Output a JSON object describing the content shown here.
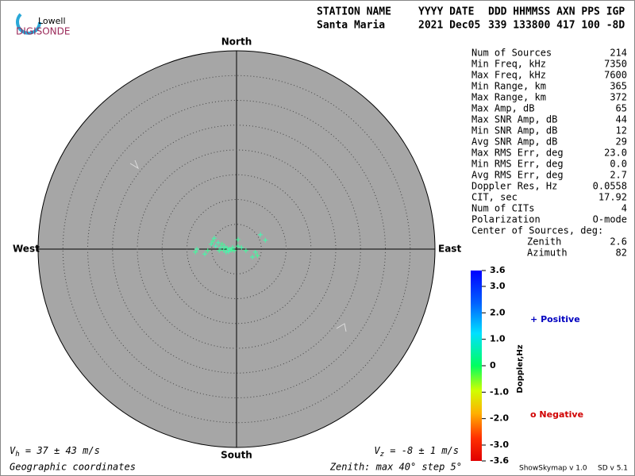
{
  "logo": {
    "top": "Lowell",
    "bottom": "DIGISONDE"
  },
  "header": {
    "labels": [
      "STATION NAME",
      "YYYY DATE",
      "DDD HHMMSS AXN PPS IGP"
    ],
    "values": [
      "Santa Maria",
      "2021 Dec05",
      "339 133800 417 100 -8D"
    ]
  },
  "stats": [
    {
      "label": "Num of Sources",
      "value": "214"
    },
    {
      "label": "Min Freq, kHz",
      "value": "7350"
    },
    {
      "label": "Max Freq, kHz",
      "value": "7600"
    },
    {
      "label": "Min Range, km",
      "value": "365"
    },
    {
      "label": "Max Range, km",
      "value": "372"
    },
    {
      "label": "Max Amp, dB",
      "value": "65"
    },
    {
      "label": "Max SNR Amp, dB",
      "value": "44"
    },
    {
      "label": "Min SNR Amp, dB",
      "value": "12"
    },
    {
      "label": "Avg SNR Amp, dB",
      "value": "29"
    },
    {
      "label": "Max RMS Err, deg",
      "value": "23.0"
    },
    {
      "label": "Min RMS Err, deg",
      "value": "0.0"
    },
    {
      "label": "Avg RMS Err, deg",
      "value": "2.7"
    },
    {
      "label": "Doppler Res, Hz",
      "value": "0.0558"
    },
    {
      "label": "CIT, sec",
      "value": "17.92"
    },
    {
      "label": "Num of CITs",
      "value": "4"
    },
    {
      "label": "Polarization",
      "value": "O-mode"
    },
    {
      "label": "Center of Sources, deg:"
    },
    {
      "label": "Zenith",
      "value": "2.6"
    },
    {
      "label": "Azimuth",
      "value": "82"
    }
  ],
  "skymap": {
    "directions": {
      "north": "North",
      "south": "South",
      "east": "East",
      "west": "West"
    },
    "zenith_max": 40,
    "ring_step": 5,
    "sources": [
      {
        "east": -4.5,
        "north": 2.2,
        "doppler": 1.0
      },
      {
        "east": -4.8,
        "north": 1.6,
        "doppler": 0.9
      },
      {
        "east": -3.7,
        "north": 1.3,
        "doppler": 1.1
      },
      {
        "east": -2.9,
        "north": 1.0,
        "doppler": 0.8
      },
      {
        "east": -2.4,
        "north": 0.5,
        "doppler": 1.0
      },
      {
        "east": -1.9,
        "north": 0.2,
        "doppler": 0.9
      },
      {
        "east": -1.4,
        "north": 0,
        "doppler": 1.0
      },
      {
        "east": -1.0,
        "north": -0.2,
        "doppler": 0.8
      },
      {
        "east": -0.5,
        "north": -0.3,
        "doppler": 0.9
      },
      {
        "east": -3.2,
        "north": 0.3,
        "doppler": 1.0
      },
      {
        "east": -2.6,
        "north": -0.2,
        "doppler": 0.9
      },
      {
        "east": -1.6,
        "north": -0.5,
        "doppler": 1.1
      },
      {
        "east": -0.8,
        "north": 0.3,
        "doppler": 1.0
      },
      {
        "east": 0.3,
        "north": 0.6,
        "doppler": 0.9
      },
      {
        "east": 1.0,
        "north": 0.3,
        "doppler": 1.0
      },
      {
        "east": -4.2,
        "north": 0.6,
        "doppler": 1.2
      },
      {
        "east": -5.8,
        "north": -0.3,
        "doppler": 0.8
      },
      {
        "east": -8.0,
        "north": 0,
        "doppler": 1.0
      },
      {
        "east": -8.3,
        "north": -0.6,
        "doppler": 0.9
      },
      {
        "east": -6.4,
        "north": -1.0,
        "doppler": 1.0
      },
      {
        "east": 1.9,
        "north": -0.3,
        "doppler": 0.9
      },
      {
        "east": 3.8,
        "north": -0.6,
        "doppler": 1.0
      },
      {
        "east": 4.2,
        "north": -1.3,
        "doppler": 0.8
      },
      {
        "east": 3.2,
        "north": -1.6,
        "doppler": 1.0
      },
      {
        "east": 4.8,
        "north": 2.9,
        "doppler": 1.1
      },
      {
        "east": 5.8,
        "north": 1.8,
        "doppler": 1.0
      },
      {
        "east": 0.3,
        "north": 1.9,
        "doppler": 0.9
      },
      {
        "east": -2.1,
        "north": -0.6,
        "doppler": 1.0
      },
      {
        "east": -3.5,
        "north": -0.3,
        "doppler": 0.9
      },
      {
        "east": -5.1,
        "north": 1.0,
        "doppler": 1.0
      }
    ],
    "vh": {
      "symbol": "V",
      "sub": "h",
      "text": " = 37 ± 43 m/s"
    },
    "vz": {
      "symbol": "V",
      "sub": "z",
      "text": " = -8 ± 1 m/s"
    },
    "coordinates": "Geographic coordinates",
    "zenith_note": "Zenith: max 40°  step 5°"
  },
  "colorbar": {
    "label": "Doppler,Hz",
    "range": [
      -3.6,
      3.6
    ],
    "ticks": [
      3.6,
      {
        "value": 3.0,
        "label": "3.0"
      },
      {
        "value": 2.0,
        "label": "2.0"
      },
      {
        "value": 1.0,
        "label": "1.0"
      },
      0,
      {
        "value": -1.0,
        "label": "-1.0"
      },
      {
        "value": -2.0,
        "label": "-2.0"
      },
      {
        "value": -3.0,
        "label": "-3.0"
      },
      -3.6
    ]
  },
  "legend": {
    "positive": {
      "symbol": "+",
      "label": "Positive"
    },
    "negative": {
      "symbol": "o",
      "label": "Negative"
    }
  },
  "footer": {
    "app": "ShowSkymap v 1.0",
    "sd": "SD v 5.1"
  }
}
